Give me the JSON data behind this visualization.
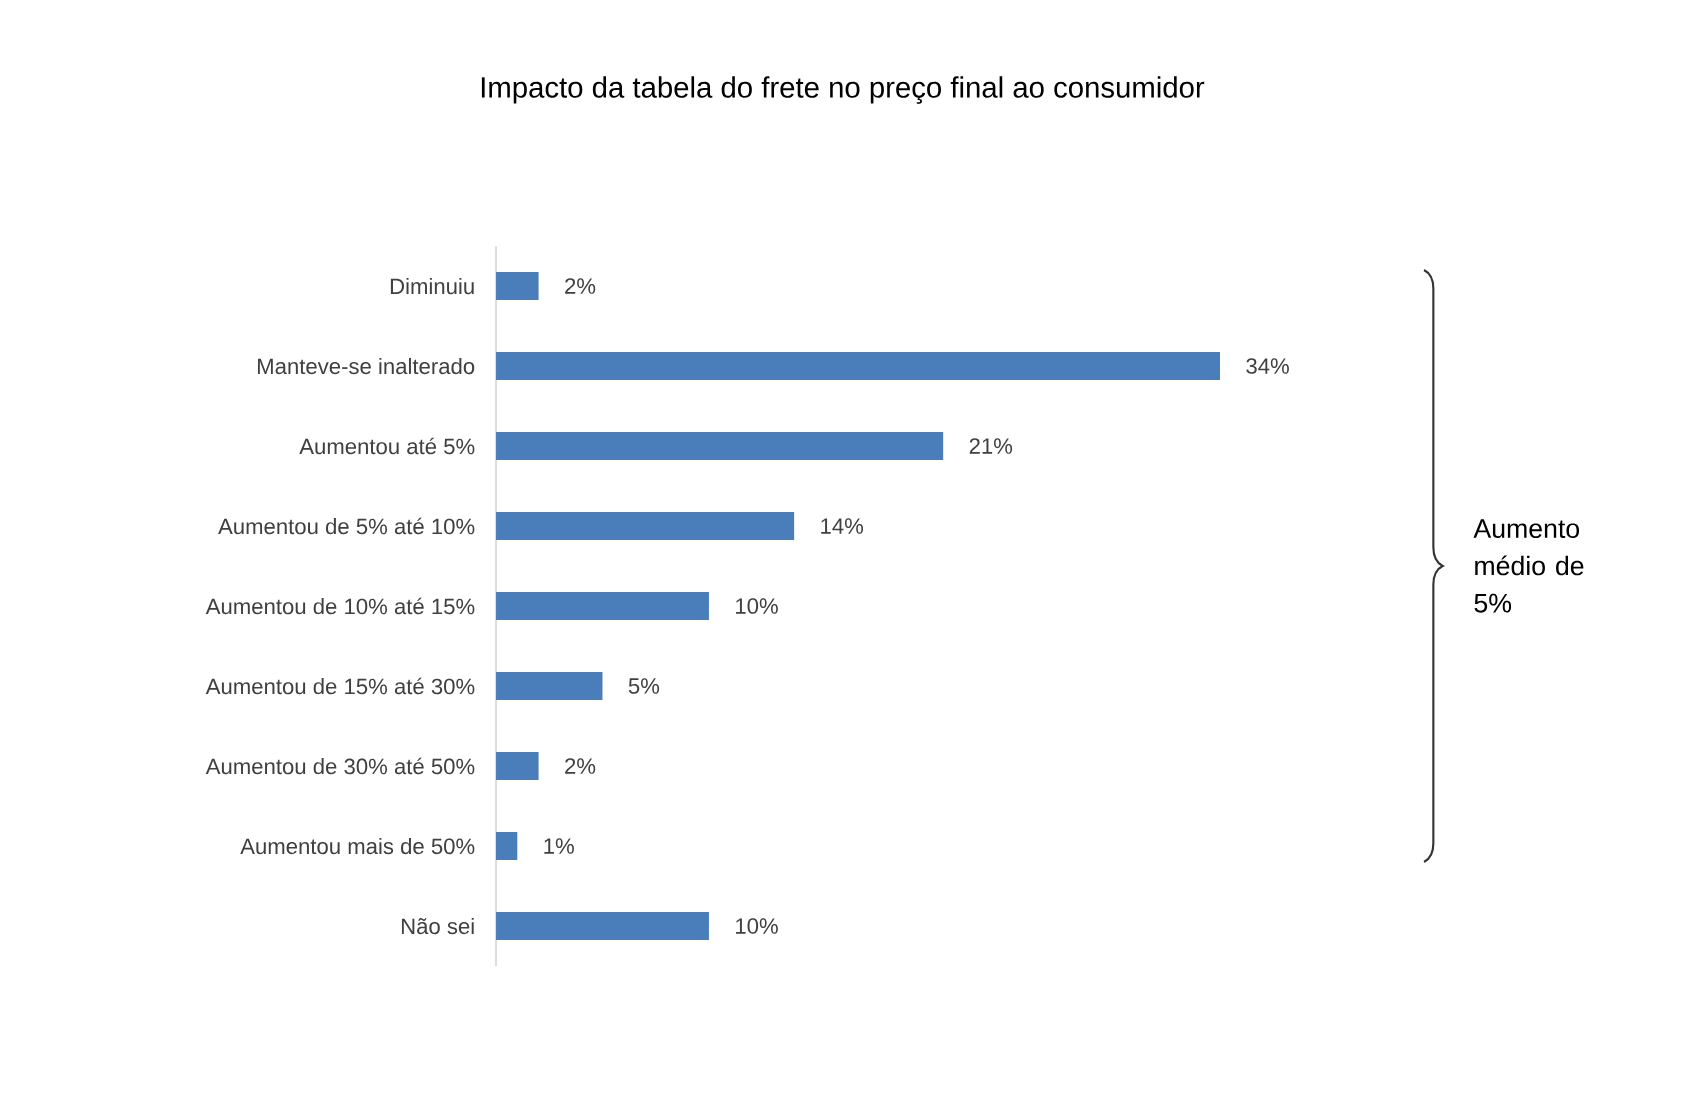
{
  "chart_data": {
    "type": "bar",
    "orientation": "horizontal",
    "title": "Impacto da tabela do frete no preço final ao consumidor",
    "categories": [
      "Diminuiu",
      "Manteve-se inalterado",
      "Aumentou até 5%",
      "Aumentou de 5% até 10%",
      "Aumentou de 10% até 15%",
      "Aumentou de 15% até 30%",
      "Aumentou de 30% até 50%",
      "Aumentou mais de 50%",
      "Não sei"
    ],
    "values": [
      2,
      34,
      21,
      14,
      10,
      5,
      2,
      1,
      10
    ],
    "value_labels": [
      "2%",
      "34%",
      "21%",
      "14%",
      "10%",
      "5%",
      "2%",
      "1%",
      "10%"
    ],
    "color": "#4a7ebb",
    "annotations": [
      "Aumento médio de 5%"
    ]
  }
}
